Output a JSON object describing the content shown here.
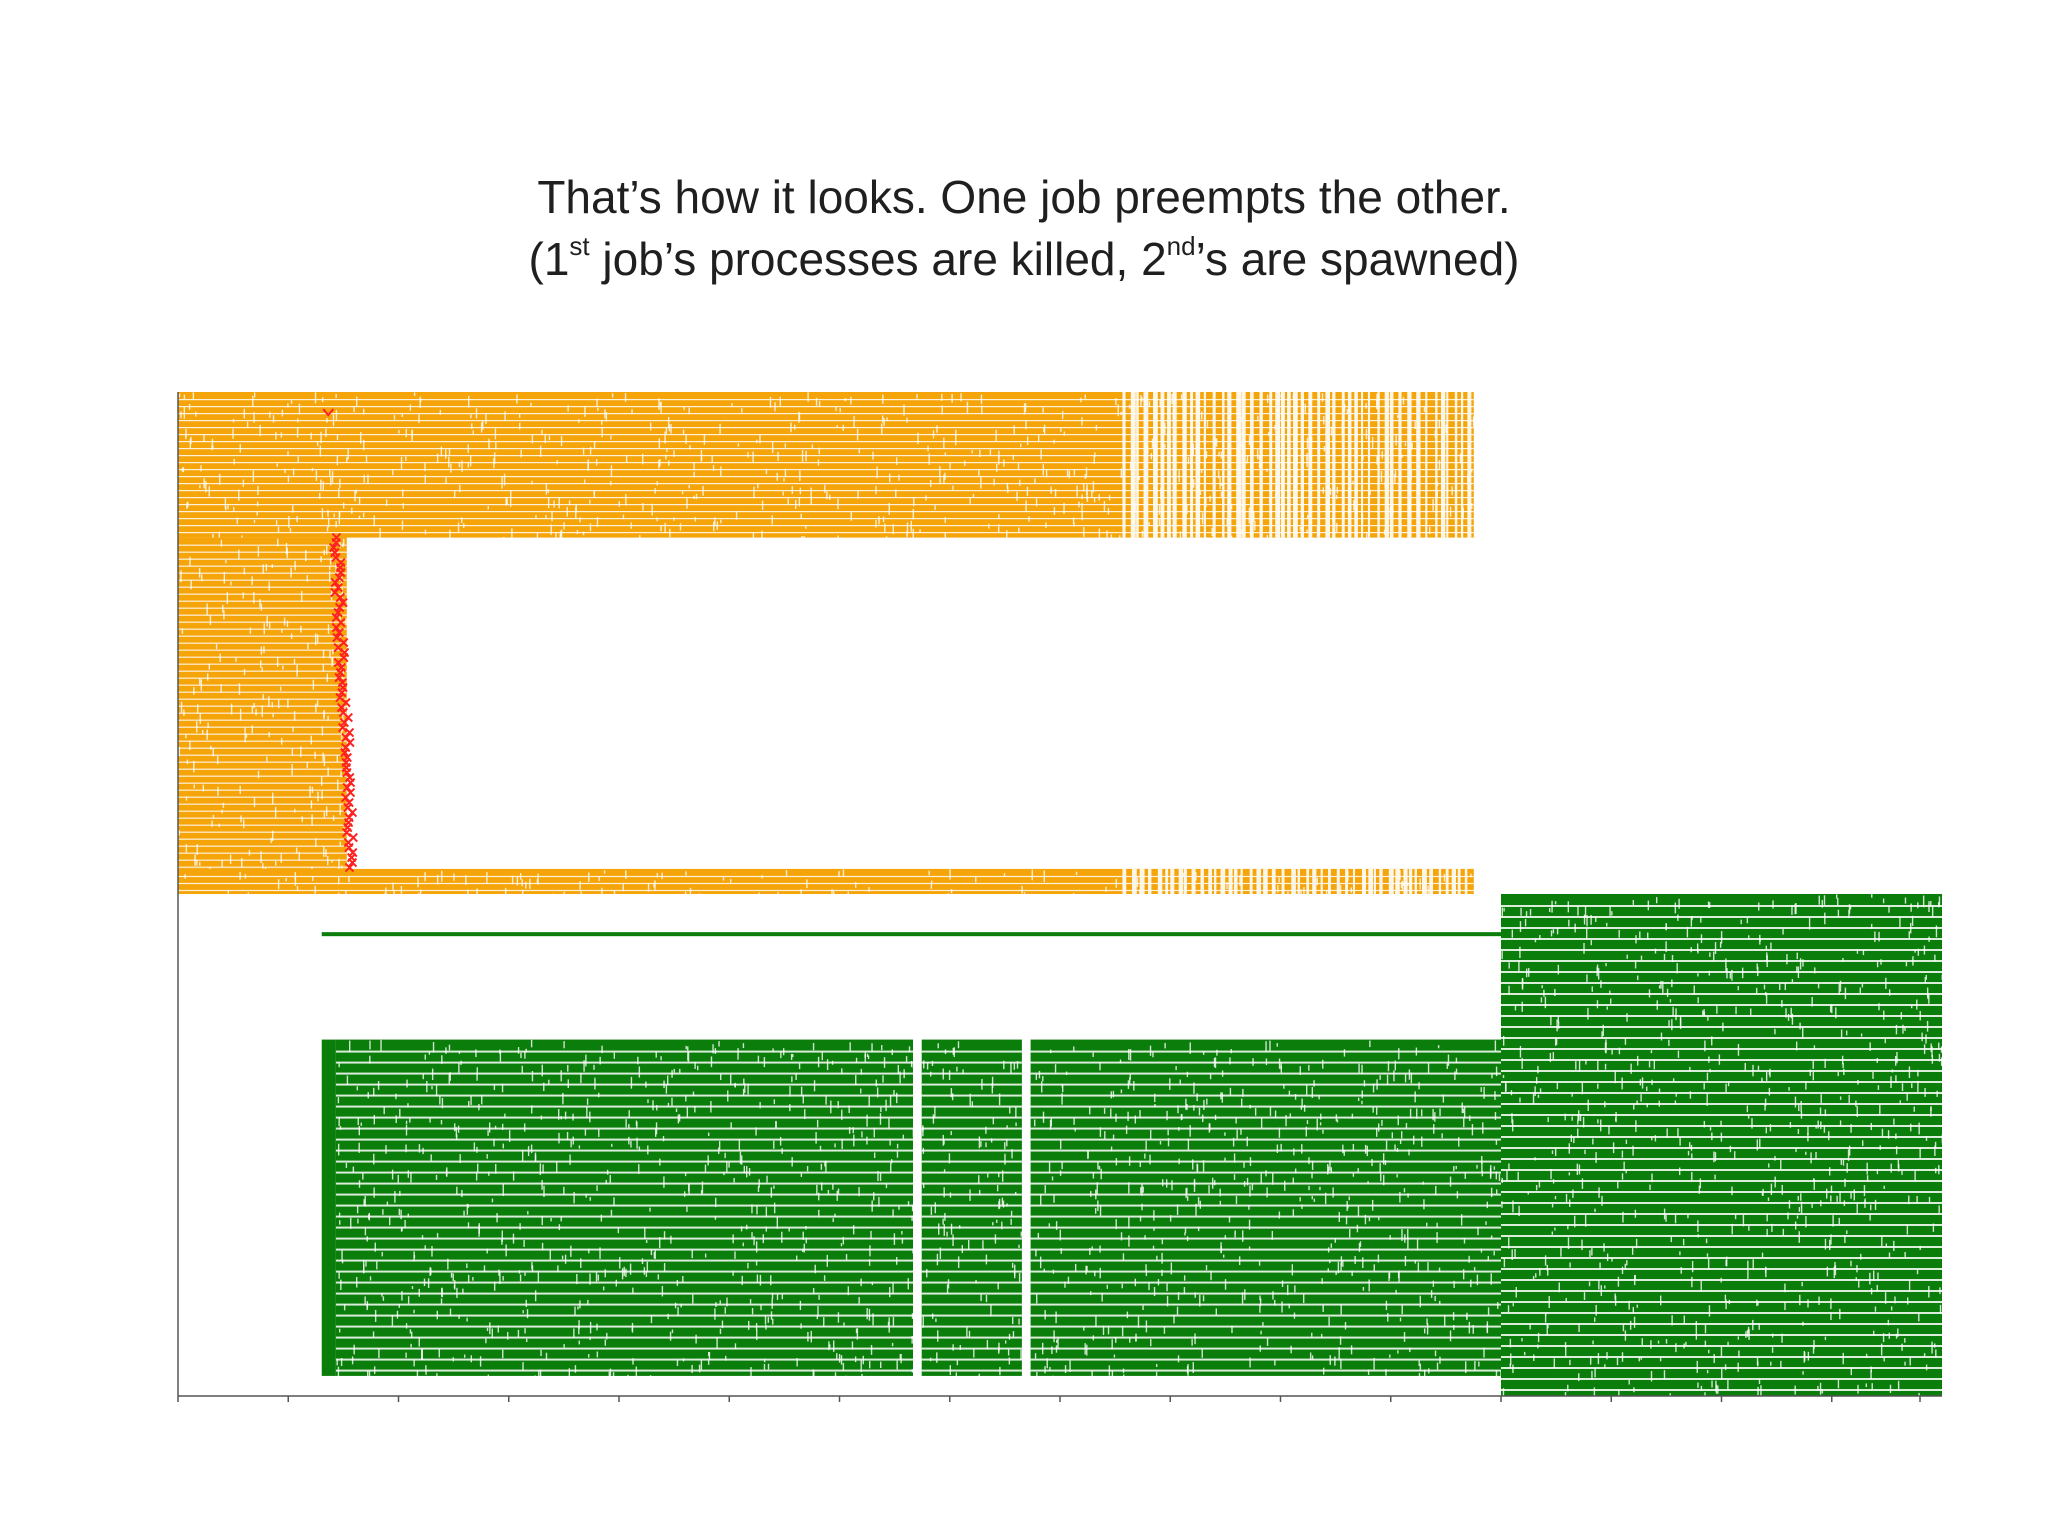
{
  "slide": {
    "title_line1": "That’s how it looks. One job preempts the other.",
    "title_line2": {
      "p1": "(1",
      "s1": "st",
      "p2": " job’s processes are killed, 2",
      "s2": "nd",
      "p3": "’s are spawned)"
    }
  },
  "colors": {
    "job1": "#f5a40a",
    "job2": "#0b7d0b",
    "kill_marker": "#ff2020",
    "gaps": "#ffffff",
    "axis": "#555555"
  },
  "chart_data": {
    "type": "gantt",
    "title": "",
    "xlabel": "",
    "ylabel": "",
    "grid": false,
    "legend": "none",
    "x_ticks": 17,
    "xlim": [
      0,
      16.2
    ],
    "ylim": [
      0,
      1
    ],
    "series": [
      {
        "job": "job 1",
        "color_key": "job1",
        "blocks": [
          {
            "x0": 0,
            "x1": 11.9,
            "y0": 0.855,
            "y1": 1.0,
            "dense_until": 8.6
          },
          {
            "x0": 0,
            "x1": 1.55,
            "y0": 0.525,
            "y1": 0.855
          },
          {
            "x0": 0,
            "x1": 11.9,
            "y0": 0.5,
            "y1": 0.525,
            "dense_until": 8.6
          }
        ]
      },
      {
        "job": "job 2",
        "color_key": "job2",
        "blocks": [
          {
            "x0": 1.32,
            "x1": 13.6,
            "y0": 0.458,
            "y1": 0.462
          },
          {
            "x0": 1.32,
            "x1": 1.45,
            "y0": 0.02,
            "y1": 0.355
          },
          {
            "x0": 1.45,
            "x1": 6.75,
            "y0": 0.02,
            "y1": 0.355
          },
          {
            "x0": 6.83,
            "x1": 7.75,
            "y0": 0.02,
            "y1": 0.355
          },
          {
            "x0": 7.83,
            "x1": 12.15,
            "y0": 0.02,
            "y1": 0.355
          },
          {
            "x0": 12.15,
            "x1": 16.2,
            "y0": 0.0,
            "y1": 0.5
          }
        ]
      }
    ],
    "kill_events": {
      "x_start": 1.45,
      "x_end": 1.6,
      "y_top": 0.855,
      "y_bottom": 0.525
    }
  }
}
